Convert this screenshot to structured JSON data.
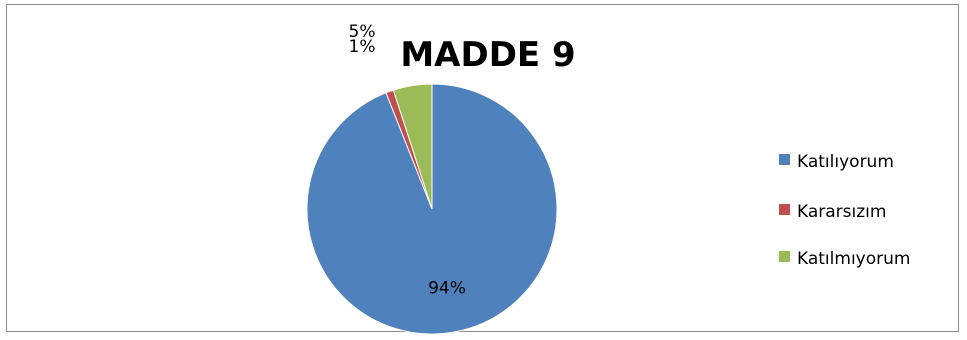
{
  "chart_data": {
    "type": "pie",
    "title": "MADDE 9",
    "categories": [
      "Katılıyorum",
      "Kararsızım",
      "Katılmıyorum"
    ],
    "values": [
      94,
      1,
      5
    ],
    "value_labels": [
      "94%",
      "1%",
      "5%"
    ],
    "colors": [
      "#4F81BD",
      "#C0504D",
      "#9BBB59"
    ],
    "legend_position": "right"
  }
}
